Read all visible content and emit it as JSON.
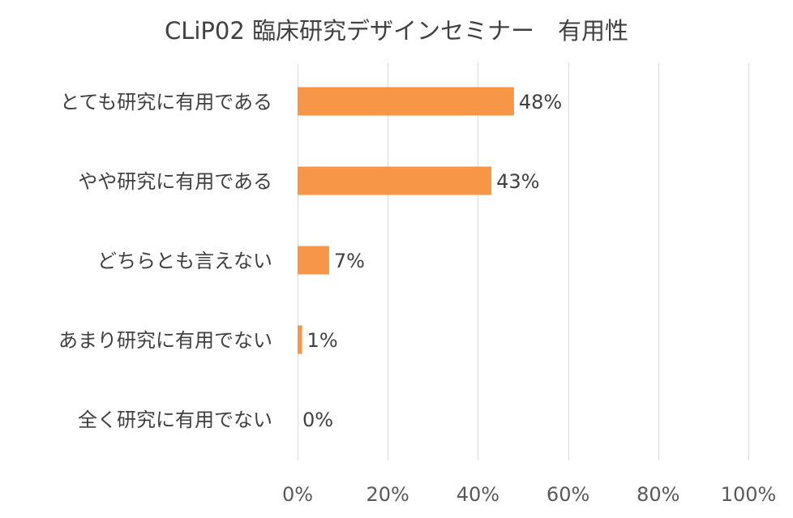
{
  "chart_data": {
    "type": "bar",
    "orientation": "horizontal",
    "title": "CLiP02 臨床研究デザインセミナー　有用性",
    "categories": [
      "とても研究に有用である",
      "やや研究に有用である",
      "どちらとも言えない",
      "あまり研究に有用でない",
      "全く研究に有用でない"
    ],
    "values": [
      48,
      43,
      7,
      1,
      0
    ],
    "data_labels": [
      "48%",
      "43%",
      "7%",
      "1%",
      "0%"
    ],
    "xlim": [
      0,
      100
    ],
    "x_ticks": [
      0,
      20,
      40,
      60,
      80,
      100
    ],
    "x_tick_labels": [
      "0%",
      "20%",
      "40%",
      "60%",
      "80%",
      "100%"
    ],
    "xlabel": "",
    "ylabel": "",
    "grid": true,
    "legend": "none",
    "bar_color": "#F79646"
  }
}
